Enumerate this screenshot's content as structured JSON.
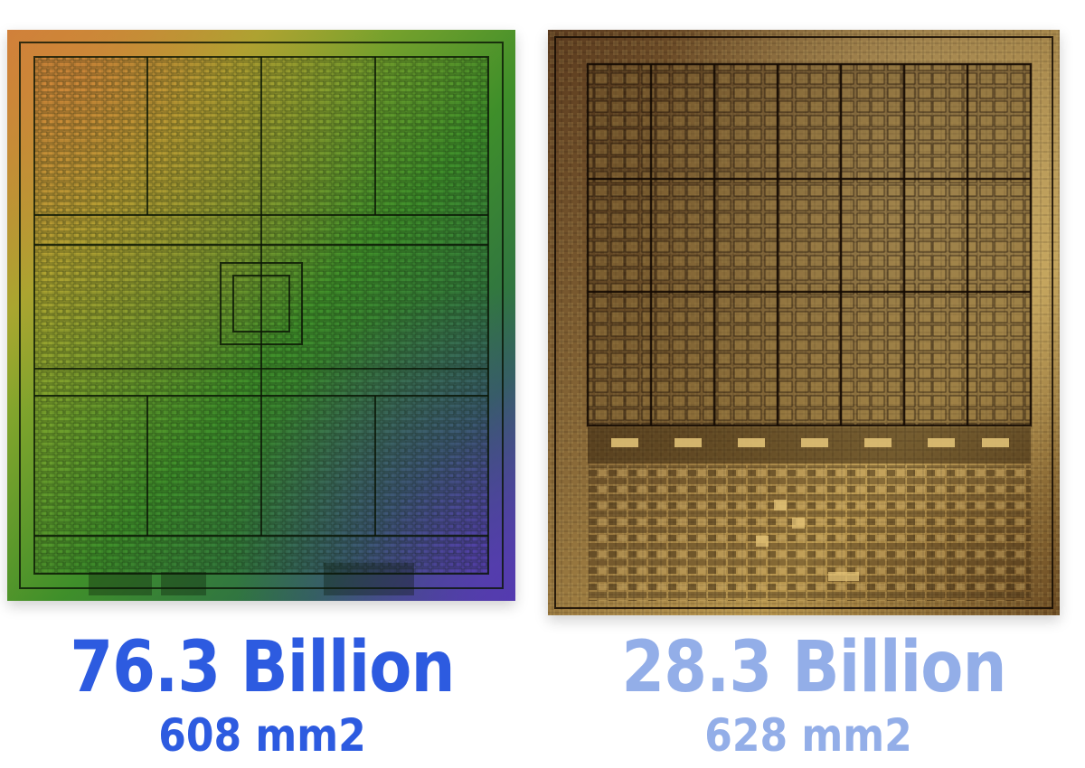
{
  "chips": [
    {
      "transistors": "76.3 Billion",
      "area": "608 mm2",
      "color": "#2d5be0"
    },
    {
      "transistors": "28.3 Billion",
      "area": "628 mm2",
      "color": "#93aee8"
    }
  ],
  "colors": {
    "background": "#ffffff",
    "left_die_tones": [
      "#c98a3a",
      "#8fae2e",
      "#3f8a2a",
      "#2a6a4a",
      "#4a3a9a"
    ],
    "right_die_tones": [
      "#3a2410",
      "#7a5a2a",
      "#c9a455",
      "#e8c87a"
    ]
  }
}
